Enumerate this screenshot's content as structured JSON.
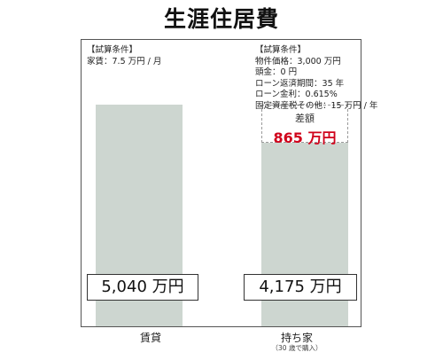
{
  "title": "生涯住居費",
  "chart_data": {
    "type": "bar",
    "categories": [
      "賃貸",
      "持ち家"
    ],
    "category_notes": [
      "",
      "（30 歳で購入）"
    ],
    "values": [
      5040,
      4175
    ],
    "value_labels": [
      "5,040 万円",
      "4,175 万円"
    ],
    "unit": "万円",
    "ylim": [
      0,
      6500
    ],
    "grid": false,
    "bar_color": "#cdd6d0",
    "difference": {
      "label": "差額",
      "value": 865,
      "value_label": "865 万円",
      "color": "#d0021b"
    },
    "conditions": [
      [
        "【試算条件】",
        "家賃：7.5 万円 / 月"
      ],
      [
        "【試算条件】",
        "物件価格：3,000 万円",
        "頭金：0 円",
        "ローン返済期間：35 年",
        "ローン金利：0.615%",
        "固定資産税その他：15 万円 / 年"
      ]
    ]
  }
}
